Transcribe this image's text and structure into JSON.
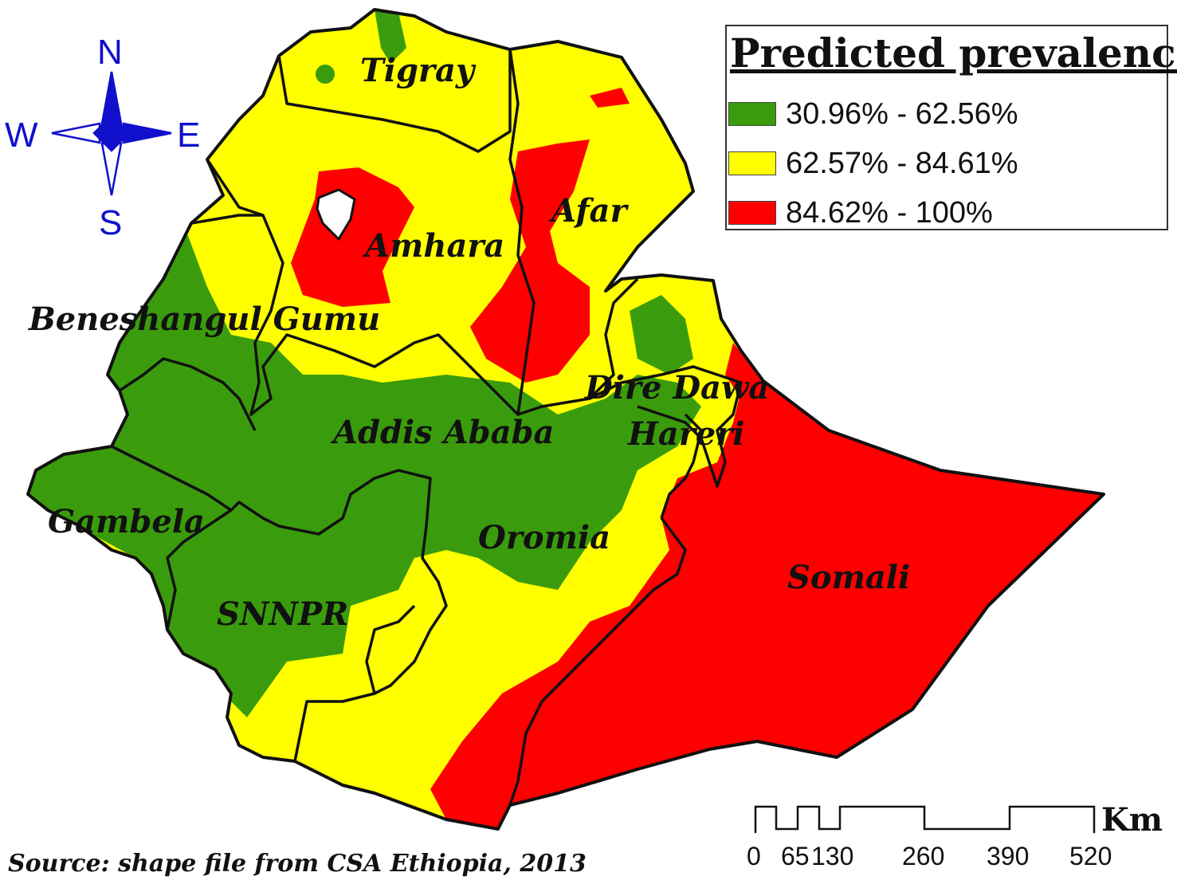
{
  "colors": {
    "low": "#3a9c0c",
    "mid": "#ffff00",
    "high": "#ff0000",
    "compass": "#1010cc"
  },
  "legend": {
    "title": "Predicted prevalence",
    "items": [
      {
        "label": "30.96% - 62.56%",
        "color": "#3a9c0c"
      },
      {
        "label": "62.57% - 84.61%",
        "color": "#ffff00"
      },
      {
        "label": "84.62% - 100%",
        "color": "#ff0000"
      }
    ]
  },
  "compass": {
    "n": "N",
    "s": "S",
    "e": "E",
    "w": "W"
  },
  "regions": {
    "tigray": "Tigray",
    "afar": "Afar",
    "amhara": "Amhara",
    "beneshangul": "Beneshangul Gumu",
    "dire_dawa": "Dire Dawa",
    "addis_ababa": "Addis Ababa",
    "hareri": "Hareri",
    "gambela": "Gambela",
    "oromia": "Oromia",
    "snnpr": "SNNPR",
    "somali": "Somali"
  },
  "scale_bar": {
    "ticks": [
      "0",
      "65",
      "130",
      "260",
      "390",
      "520"
    ],
    "unit": "Km"
  },
  "source": "Source: shape file from CSA Ethiopia, 2013"
}
